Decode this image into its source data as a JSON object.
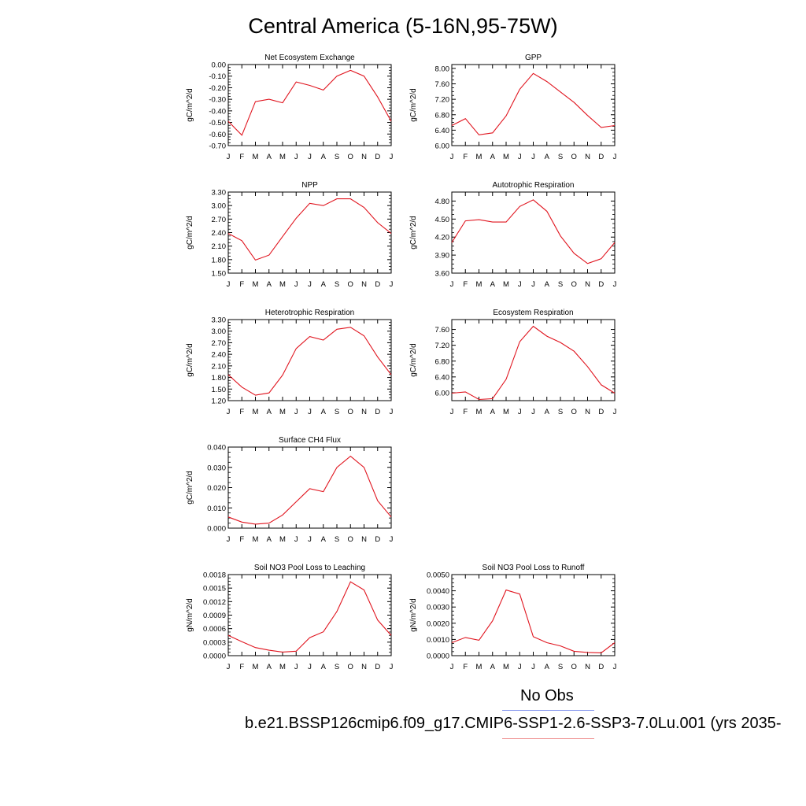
{
  "title": "Central America (5-16N,95-75W)",
  "legend": {
    "obs_label": "No Obs",
    "obs_color": "#8899ee",
    "case_label": "b.e21.BSSP126cmip6.f09_g17.CMIP6-SSP1-2.6-SSP3-7.0Lu.001 (yrs 2035-",
    "case_color": "#ee8888"
  },
  "line_color": "#e0141e",
  "chart_data": [
    {
      "type": "line",
      "title": "Net Ecosystem Exchange",
      "ylabel": "gC/m^2/d",
      "x": [
        "J",
        "F",
        "M",
        "A",
        "M",
        "J",
        "J",
        "A",
        "S",
        "O",
        "N",
        "D",
        "J"
      ],
      "ylim": [
        -0.7,
        0.0
      ],
      "yticks": [
        "0.00",
        "-0.10",
        "-0.20",
        "-0.30",
        "-0.40",
        "-0.50",
        "-0.60",
        "-0.70"
      ],
      "ytick_values": [
        0.0,
        -0.1,
        -0.2,
        -0.3,
        -0.4,
        -0.5,
        -0.6,
        -0.7
      ],
      "values": [
        -0.49,
        -0.61,
        -0.32,
        -0.3,
        -0.33,
        -0.15,
        -0.18,
        -0.22,
        -0.1,
        -0.05,
        -0.1,
        -0.28,
        -0.49
      ]
    },
    {
      "type": "line",
      "title": "GPP",
      "ylabel": "gC/m^2/d",
      "x": [
        "J",
        "F",
        "M",
        "A",
        "M",
        "J",
        "J",
        "A",
        "S",
        "O",
        "N",
        "D",
        "J"
      ],
      "ylim": [
        6.0,
        8.1
      ],
      "yticks": [
        "8.00",
        "7.60",
        "7.20",
        "6.80",
        "6.40",
        "6.00"
      ],
      "ytick_values": [
        8.0,
        7.6,
        7.2,
        6.8,
        6.4,
        6.0
      ],
      "values": [
        6.52,
        6.7,
        6.28,
        6.33,
        6.77,
        7.46,
        7.87,
        7.66,
        7.39,
        7.12,
        6.78,
        6.47,
        6.52
      ]
    },
    {
      "type": "line",
      "title": "NPP",
      "ylabel": "gC/m^2/d",
      "x": [
        "J",
        "F",
        "M",
        "A",
        "M",
        "J",
        "J",
        "A",
        "S",
        "O",
        "N",
        "D",
        "J"
      ],
      "ylim": [
        1.5,
        3.3
      ],
      "yticks": [
        "3.30",
        "3.00",
        "2.70",
        "2.40",
        "2.10",
        "1.80",
        "1.50"
      ],
      "ytick_values": [
        3.3,
        3.0,
        2.7,
        2.4,
        2.1,
        1.8,
        1.5
      ],
      "values": [
        2.38,
        2.22,
        1.79,
        1.9,
        2.31,
        2.72,
        3.05,
        3.0,
        3.15,
        3.15,
        2.96,
        2.62,
        2.38
      ]
    },
    {
      "type": "line",
      "title": "Autotrophic Respiration",
      "ylabel": "gC/m^2/d",
      "x": [
        "J",
        "F",
        "M",
        "A",
        "M",
        "J",
        "J",
        "A",
        "S",
        "O",
        "N",
        "D",
        "J"
      ],
      "ylim": [
        3.6,
        4.95
      ],
      "yticks": [
        "4.80",
        "4.50",
        "4.20",
        "3.90",
        "3.60"
      ],
      "ytick_values": [
        4.8,
        4.5,
        4.2,
        3.9,
        3.6
      ],
      "values": [
        4.11,
        4.47,
        4.49,
        4.45,
        4.45,
        4.71,
        4.82,
        4.63,
        4.22,
        3.93,
        3.76,
        3.84,
        4.11
      ]
    },
    {
      "type": "line",
      "title": "Heterotrophic Respiration",
      "ylabel": "gC/m^2/d",
      "x": [
        "J",
        "F",
        "M",
        "A",
        "M",
        "J",
        "J",
        "A",
        "S",
        "O",
        "N",
        "D",
        "J"
      ],
      "ylim": [
        1.2,
        3.3
      ],
      "yticks": [
        "3.30",
        "3.00",
        "2.70",
        "2.40",
        "2.10",
        "1.80",
        "1.50",
        "1.20"
      ],
      "ytick_values": [
        3.3,
        3.0,
        2.7,
        2.4,
        2.1,
        1.8,
        1.5,
        1.2
      ],
      "values": [
        1.87,
        1.55,
        1.34,
        1.4,
        1.86,
        2.55,
        2.86,
        2.77,
        3.05,
        3.1,
        2.88,
        2.33,
        1.87
      ]
    },
    {
      "type": "line",
      "title": "Ecosystem Respiration",
      "ylabel": "gC/m^2/d",
      "x": [
        "J",
        "F",
        "M",
        "A",
        "M",
        "J",
        "J",
        "A",
        "S",
        "O",
        "N",
        "D",
        "J"
      ],
      "ylim": [
        5.8,
        7.85
      ],
      "yticks": [
        "7.60",
        "7.20",
        "6.80",
        "6.40",
        "6.00"
      ],
      "ytick_values": [
        7.6,
        7.2,
        6.8,
        6.4,
        6.0
      ],
      "values": [
        5.99,
        6.02,
        5.83,
        5.85,
        6.34,
        7.29,
        7.68,
        7.43,
        7.27,
        7.05,
        6.66,
        6.2,
        5.99
      ]
    },
    {
      "type": "line",
      "title": "Surface CH4 Flux",
      "ylabel": "gC/m^2/d",
      "x": [
        "J",
        "F",
        "M",
        "A",
        "M",
        "J",
        "J",
        "A",
        "S",
        "O",
        "N",
        "D",
        "J"
      ],
      "ylim": [
        0.0,
        0.04
      ],
      "yticks": [
        "0.040",
        "0.030",
        "0.020",
        "0.010",
        "0.000"
      ],
      "ytick_values": [
        0.04,
        0.03,
        0.02,
        0.01,
        0.0
      ],
      "values": [
        0.0055,
        0.003,
        0.002,
        0.0025,
        0.0065,
        0.013,
        0.0195,
        0.018,
        0.03,
        0.0355,
        0.03,
        0.0135,
        0.0055
      ]
    },
    {
      "type": "line",
      "title": "Soil NO3 Pool Loss to Leaching",
      "ylabel": "gN/m^2/d",
      "x": [
        "J",
        "F",
        "M",
        "A",
        "M",
        "J",
        "J",
        "A",
        "S",
        "O",
        "N",
        "D",
        "J"
      ],
      "ylim": [
        0.0,
        0.0018
      ],
      "yticks": [
        "0.0018",
        "0.0015",
        "0.0012",
        "0.0009",
        "0.0006",
        "0.0003",
        "0.0000"
      ],
      "ytick_values": [
        0.0018,
        0.0015,
        0.0012,
        0.0009,
        0.0006,
        0.0003,
        0.0
      ],
      "values": [
        0.00045,
        0.00031,
        0.00018,
        0.00012,
        8e-05,
        0.0001,
        0.0004,
        0.00053,
        0.00098,
        0.00164,
        0.00146,
        0.00079,
        0.00045
      ]
    },
    {
      "type": "line",
      "title": "Soil NO3 Pool Loss to Runoff",
      "ylabel": "gN/m^2/d",
      "x": [
        "J",
        "F",
        "M",
        "A",
        "M",
        "J",
        "J",
        "A",
        "S",
        "O",
        "N",
        "D",
        "J"
      ],
      "ylim": [
        0.0,
        0.005
      ],
      "yticks": [
        "0.0050",
        "0.0040",
        "0.0030",
        "0.0020",
        "0.0010",
        "0.0000"
      ],
      "ytick_values": [
        0.005,
        0.004,
        0.003,
        0.002,
        0.001,
        0.0
      ],
      "values": [
        0.0008,
        0.00112,
        0.00095,
        0.00215,
        0.00405,
        0.0038,
        0.00117,
        0.0008,
        0.0006,
        0.00027,
        0.0002,
        0.00017,
        0.0008
      ]
    }
  ]
}
